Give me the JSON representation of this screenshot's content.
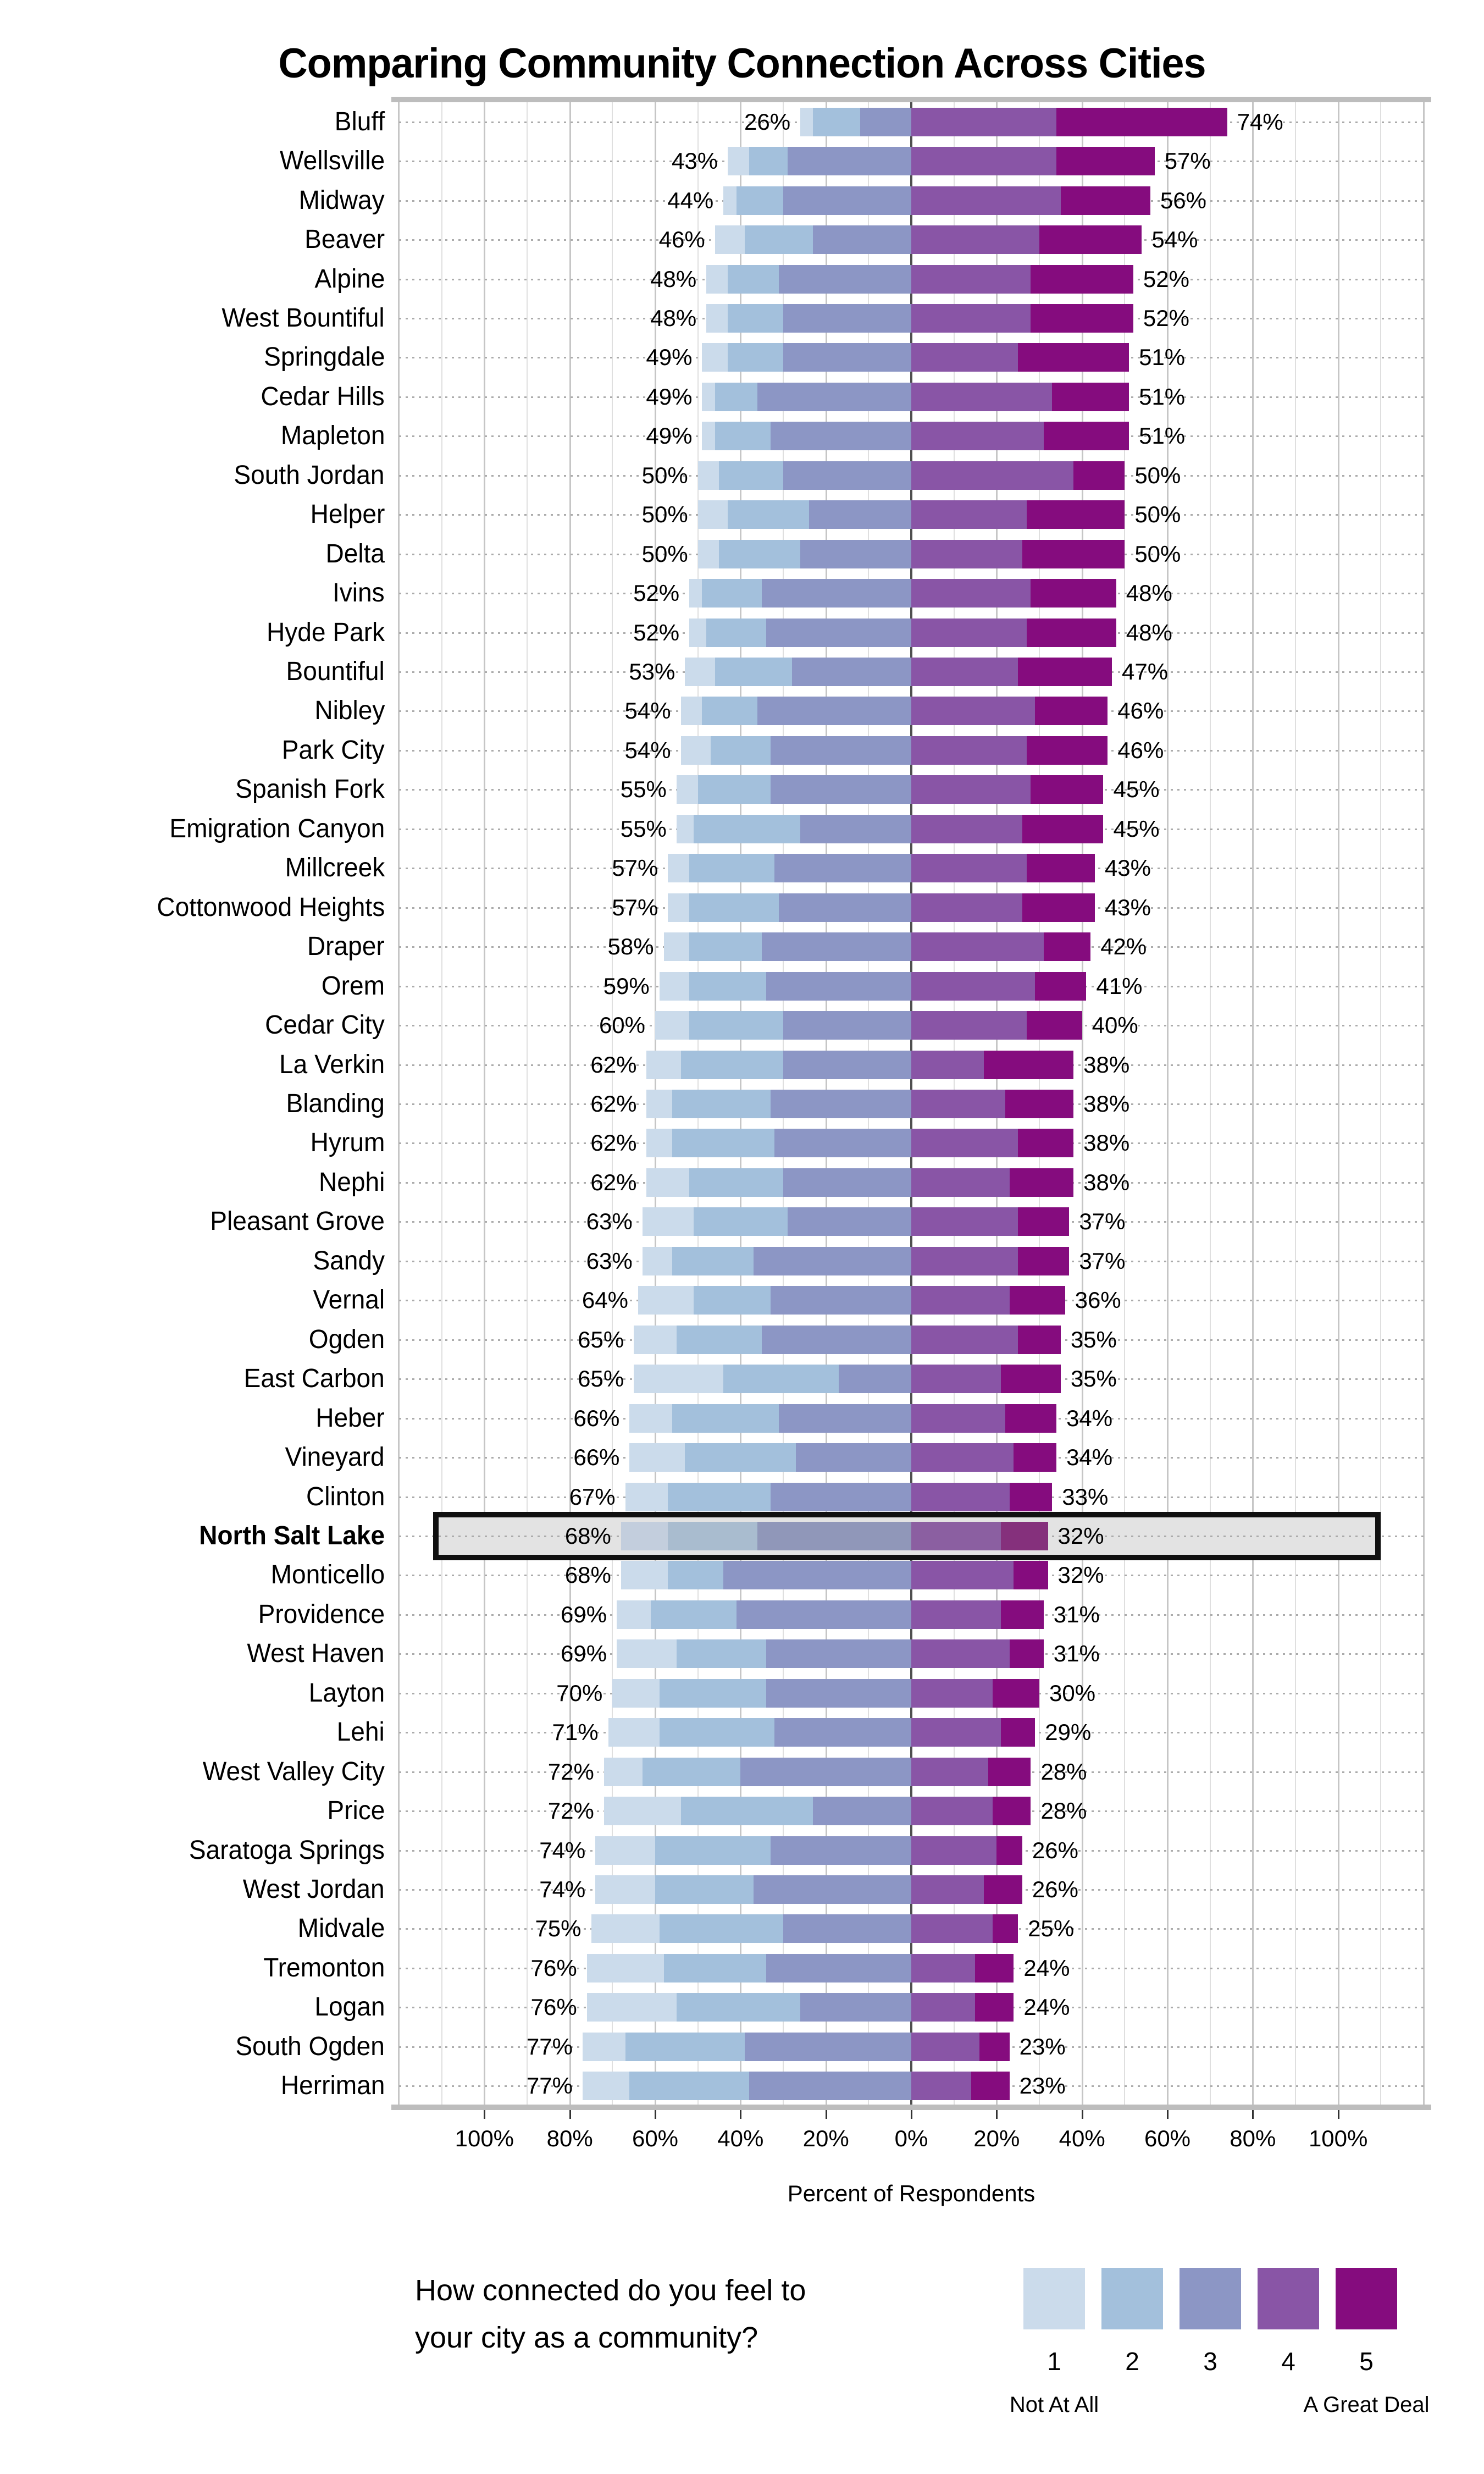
{
  "title": "Comparing Community Connection Across Cities",
  "axis": {
    "xlabel": "Percent of Respondents",
    "range": [
      -120,
      120
    ],
    "ticks": [
      {
        "v": -100,
        "label": "100%"
      },
      {
        "v": -80,
        "label": "80%"
      },
      {
        "v": -60,
        "label": "60%"
      },
      {
        "v": -40,
        "label": "40%"
      },
      {
        "v": -20,
        "label": "20%"
      },
      {
        "v": 0,
        "label": "0%"
      },
      {
        "v": 20,
        "label": "20%"
      },
      {
        "v": 40,
        "label": "40%"
      },
      {
        "v": 60,
        "label": "60%"
      },
      {
        "v": 80,
        "label": "80%"
      },
      {
        "v": 100,
        "label": "100%"
      }
    ]
  },
  "legend": {
    "question_line1": "How connected do you feel to",
    "question_line2": "your city as a community?",
    "levels": [
      "1",
      "2",
      "3",
      "4",
      "5"
    ],
    "low_label": "Not At All",
    "high_label": "A Great Deal"
  },
  "colors": {
    "scale": [
      "#cbdbeb",
      "#a3c0dc",
      "#8c96c5",
      "#8955a6",
      "#850c7e"
    ],
    "scale_muted": [
      "#c3cedd",
      "#a9bccf",
      "#9097b9",
      "#8b5fa1",
      "#85307c"
    ],
    "highlight_box_fill": "#e3e3e3",
    "highlight_box_border": "#101010",
    "zero_line": "#4f4f4f"
  },
  "chart_data": {
    "type": "bar",
    "subtype": "diverging-stacked-likert",
    "stacked": true,
    "title": "Comparing Community Connection Across Cities",
    "xlabel": "Percent of Respondents",
    "question": "How connected do you feel to your city as a community?",
    "scale_meaning": "Likert 1-5; 1 = Not At All, 5 = A Great Deal; categories 1-3 plotted left of zero, 4-5 right of zero",
    "xlim": [
      -120,
      120
    ],
    "series_names": [
      "1",
      "2",
      "3",
      "4",
      "5"
    ],
    "rows": [
      {
        "city": "Bluff",
        "values": [
          3,
          11,
          12,
          34,
          40
        ],
        "left_label": "26%",
        "right_label": "74%",
        "highlighted": false
      },
      {
        "city": "Wellsville",
        "values": [
          5,
          9,
          29,
          34,
          23
        ],
        "left_label": "43%",
        "right_label": "57%",
        "highlighted": false
      },
      {
        "city": "Midway",
        "values": [
          3,
          11,
          30,
          35,
          21
        ],
        "left_label": "44%",
        "right_label": "56%",
        "highlighted": false
      },
      {
        "city": "Beaver",
        "values": [
          7,
          16,
          23,
          30,
          24
        ],
        "left_label": "46%",
        "right_label": "54%",
        "highlighted": false
      },
      {
        "city": "Alpine",
        "values": [
          5,
          12,
          31,
          28,
          24
        ],
        "left_label": "48%",
        "right_label": "52%",
        "highlighted": false
      },
      {
        "city": "West Bountiful",
        "values": [
          5,
          13,
          30,
          28,
          24
        ],
        "left_label": "48%",
        "right_label": "52%",
        "highlighted": false
      },
      {
        "city": "Springdale",
        "values": [
          6,
          13,
          30,
          25,
          26
        ],
        "left_label": "49%",
        "right_label": "51%",
        "highlighted": false
      },
      {
        "city": "Cedar Hills",
        "values": [
          3,
          10,
          36,
          33,
          18
        ],
        "left_label": "49%",
        "right_label": "51%",
        "highlighted": false
      },
      {
        "city": "Mapleton",
        "values": [
          3,
          13,
          33,
          31,
          20
        ],
        "left_label": "49%",
        "right_label": "51%",
        "highlighted": false
      },
      {
        "city": "South Jordan",
        "values": [
          5,
          15,
          30,
          38,
          12
        ],
        "left_label": "50%",
        "right_label": "50%",
        "highlighted": false
      },
      {
        "city": "Helper",
        "values": [
          7,
          19,
          24,
          27,
          23
        ],
        "left_label": "50%",
        "right_label": "50%",
        "highlighted": false
      },
      {
        "city": "Delta",
        "values": [
          5,
          19,
          26,
          26,
          24
        ],
        "left_label": "50%",
        "right_label": "50%",
        "highlighted": false
      },
      {
        "city": "Ivins",
        "values": [
          3,
          14,
          35,
          28,
          20
        ],
        "left_label": "52%",
        "right_label": "48%",
        "highlighted": false
      },
      {
        "city": "Hyde Park",
        "values": [
          4,
          14,
          34,
          27,
          21
        ],
        "left_label": "52%",
        "right_label": "48%",
        "highlighted": false
      },
      {
        "city": "Bountiful",
        "values": [
          7,
          18,
          28,
          25,
          22
        ],
        "left_label": "53%",
        "right_label": "47%",
        "highlighted": false
      },
      {
        "city": "Nibley",
        "values": [
          5,
          13,
          36,
          29,
          17
        ],
        "left_label": "54%",
        "right_label": "46%",
        "highlighted": false
      },
      {
        "city": "Park City",
        "values": [
          7,
          14,
          33,
          27,
          19
        ],
        "left_label": "54%",
        "right_label": "46%",
        "highlighted": false
      },
      {
        "city": "Spanish Fork",
        "values": [
          5,
          17,
          33,
          28,
          17
        ],
        "left_label": "55%",
        "right_label": "45%",
        "highlighted": false
      },
      {
        "city": "Emigration Canyon",
        "values": [
          4,
          25,
          26,
          26,
          19
        ],
        "left_label": "55%",
        "right_label": "45%",
        "highlighted": false
      },
      {
        "city": "Millcreek",
        "values": [
          5,
          20,
          32,
          27,
          16
        ],
        "left_label": "57%",
        "right_label": "43%",
        "highlighted": false
      },
      {
        "city": "Cottonwood Heights",
        "values": [
          5,
          21,
          31,
          26,
          17
        ],
        "left_label": "57%",
        "right_label": "43%",
        "highlighted": false
      },
      {
        "city": "Draper",
        "values": [
          6,
          17,
          35,
          31,
          11
        ],
        "left_label": "58%",
        "right_label": "42%",
        "highlighted": false
      },
      {
        "city": "Orem",
        "values": [
          7,
          18,
          34,
          29,
          12
        ],
        "left_label": "59%",
        "right_label": "41%",
        "highlighted": false
      },
      {
        "city": "Cedar City",
        "values": [
          8,
          22,
          30,
          27,
          13
        ],
        "left_label": "60%",
        "right_label": "40%",
        "highlighted": false
      },
      {
        "city": "La Verkin",
        "values": [
          8,
          24,
          30,
          17,
          21
        ],
        "left_label": "62%",
        "right_label": "38%",
        "highlighted": false
      },
      {
        "city": "Blanding",
        "values": [
          6,
          23,
          33,
          22,
          16
        ],
        "left_label": "62%",
        "right_label": "38%",
        "highlighted": false
      },
      {
        "city": "Hyrum",
        "values": [
          6,
          24,
          32,
          25,
          13
        ],
        "left_label": "62%",
        "right_label": "38%",
        "highlighted": false
      },
      {
        "city": "Nephi",
        "values": [
          10,
          22,
          30,
          23,
          15
        ],
        "left_label": "62%",
        "right_label": "38%",
        "highlighted": false
      },
      {
        "city": "Pleasant Grove",
        "values": [
          12,
          22,
          29,
          25,
          12
        ],
        "left_label": "63%",
        "right_label": "37%",
        "highlighted": false
      },
      {
        "city": "Sandy",
        "values": [
          7,
          19,
          37,
          25,
          12
        ],
        "left_label": "63%",
        "right_label": "37%",
        "highlighted": false
      },
      {
        "city": "Vernal",
        "values": [
          13,
          18,
          33,
          23,
          13
        ],
        "left_label": "64%",
        "right_label": "36%",
        "highlighted": false
      },
      {
        "city": "Ogden",
        "values": [
          10,
          20,
          35,
          25,
          10
        ],
        "left_label": "65%",
        "right_label": "35%",
        "highlighted": false
      },
      {
        "city": "East Carbon",
        "values": [
          21,
          27,
          17,
          21,
          14
        ],
        "left_label": "65%",
        "right_label": "35%",
        "highlighted": false
      },
      {
        "city": "Heber",
        "values": [
          10,
          25,
          31,
          22,
          12
        ],
        "left_label": "66%",
        "right_label": "34%",
        "highlighted": false
      },
      {
        "city": "Vineyard",
        "values": [
          13,
          26,
          27,
          24,
          10
        ],
        "left_label": "66%",
        "right_label": "34%",
        "highlighted": false
      },
      {
        "city": "Clinton",
        "values": [
          10,
          24,
          33,
          23,
          10
        ],
        "left_label": "67%",
        "right_label": "33%",
        "highlighted": false
      },
      {
        "city": "North Salt Lake",
        "values": [
          11,
          21,
          36,
          21,
          11
        ],
        "left_label": "68%",
        "right_label": "32%",
        "highlighted": true
      },
      {
        "city": "Monticello",
        "values": [
          11,
          13,
          44,
          24,
          8
        ],
        "left_label": "68%",
        "right_label": "32%",
        "highlighted": false
      },
      {
        "city": "Providence",
        "values": [
          8,
          20,
          41,
          21,
          10
        ],
        "left_label": "69%",
        "right_label": "31%",
        "highlighted": false
      },
      {
        "city": "West Haven",
        "values": [
          14,
          21,
          34,
          23,
          8
        ],
        "left_label": "69%",
        "right_label": "31%",
        "highlighted": false
      },
      {
        "city": "Layton",
        "values": [
          11,
          25,
          34,
          19,
          11
        ],
        "left_label": "70%",
        "right_label": "30%",
        "highlighted": false
      },
      {
        "city": "Lehi",
        "values": [
          12,
          27,
          32,
          21,
          8
        ],
        "left_label": "71%",
        "right_label": "29%",
        "highlighted": false
      },
      {
        "city": "West Valley City",
        "values": [
          9,
          23,
          40,
          18,
          10
        ],
        "left_label": "72%",
        "right_label": "28%",
        "highlighted": false
      },
      {
        "city": "Price",
        "values": [
          18,
          31,
          23,
          19,
          9
        ],
        "left_label": "72%",
        "right_label": "28%",
        "highlighted": false
      },
      {
        "city": "Saratoga Springs",
        "values": [
          14,
          27,
          33,
          20,
          6
        ],
        "left_label": "74%",
        "right_label": "26%",
        "highlighted": false
      },
      {
        "city": "West Jordan",
        "values": [
          14,
          23,
          37,
          17,
          9
        ],
        "left_label": "74%",
        "right_label": "26%",
        "highlighted": false
      },
      {
        "city": "Midvale",
        "values": [
          16,
          29,
          30,
          19,
          6
        ],
        "left_label": "75%",
        "right_label": "25%",
        "highlighted": false
      },
      {
        "city": "Tremonton",
        "values": [
          18,
          24,
          34,
          15,
          9
        ],
        "left_label": "76%",
        "right_label": "24%",
        "highlighted": false
      },
      {
        "city": "Logan",
        "values": [
          21,
          29,
          26,
          15,
          9
        ],
        "left_label": "76%",
        "right_label": "24%",
        "highlighted": false
      },
      {
        "city": "South Ogden",
        "values": [
          10,
          28,
          39,
          16,
          7
        ],
        "left_label": "77%",
        "right_label": "23%",
        "highlighted": false
      },
      {
        "city": "Herriman",
        "values": [
          11,
          28,
          38,
          14,
          9
        ],
        "left_label": "77%",
        "right_label": "23%",
        "highlighted": false
      }
    ]
  }
}
